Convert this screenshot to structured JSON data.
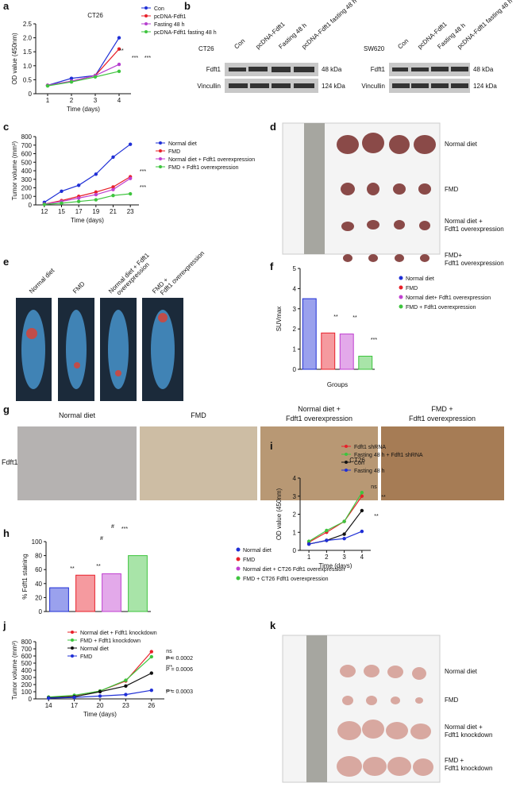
{
  "panel_labels": [
    "a",
    "b",
    "c",
    "d",
    "e",
    "f",
    "g",
    "h",
    "i",
    "j",
    "k"
  ],
  "chart_data": [
    {
      "type": "line",
      "title": "CT26",
      "x_label": "Time (days)",
      "y_label": "OD value (450nm)",
      "categories": [
        "1",
        "2",
        "3",
        "4"
      ],
      "series": [
        {
          "name": "Con",
          "color": "#1f2fd6",
          "values": [
            0.3,
            0.55,
            0.65,
            2.0
          ]
        },
        {
          "name": "pcDNA-Fdft1",
          "color": "#e8202a",
          "values": [
            0.3,
            0.45,
            0.65,
            1.6
          ]
        },
        {
          "name": "Fasting 48 h",
          "color": "#b63fcf",
          "values": [
            0.3,
            0.45,
            0.65,
            1.05
          ]
        },
        {
          "name": "pcDNA-Fdft1 fasting 48 h",
          "color": "#3ec43e",
          "values": [
            0.28,
            0.42,
            0.6,
            0.8
          ]
        }
      ],
      "ylim": [
        0,
        2.5
      ],
      "yticks": [
        0,
        0.5,
        {
          "value": 1,
          "label": "1.0"
        },
        1.5,
        {
          "value": 2,
          "label": "2.0"
        },
        2.5
      ],
      "annotations": [
        "**",
        "***",
        "***"
      ]
    },
    {
      "type": "line",
      "x_label": "Time (days)",
      "y_label": "Tumor volume (mm³)",
      "categories": [
        "12",
        "15",
        "17",
        "19",
        "21",
        "23"
      ],
      "series": [
        {
          "name": "Normal diet",
          "color": "#1f2fd6",
          "values": [
            30,
            160,
            230,
            360,
            560,
            710
          ]
        },
        {
          "name": "FMD",
          "color": "#e8202a",
          "values": [
            10,
            50,
            100,
            150,
            210,
            330
          ]
        },
        {
          "name": "Normal diet + Fdft1 overexpression",
          "color": "#c040d0",
          "values": [
            10,
            40,
            80,
            120,
            180,
            310
          ]
        },
        {
          "name": "FMD + Fdft1 overexpression",
          "color": "#3ec43e",
          "values": [
            5,
            20,
            40,
            60,
            110,
            130
          ]
        }
      ],
      "ylim": [
        0,
        800
      ],
      "yticks": [
        0,
        100,
        200,
        300,
        400,
        500,
        600,
        700,
        800
      ],
      "annotations": [
        "***",
        "***"
      ]
    },
    {
      "type": "bar",
      "x_label": "Groups",
      "y_label": "SUVmax",
      "categories": [
        "Normal diet",
        "FMD",
        "Normal diet+ Fdft1 overexpression",
        "FMD + Fdft1 overexpression"
      ],
      "values": [
        3.5,
        1.8,
        1.75,
        0.65
      ],
      "colors": [
        "#1f2fd6",
        "#e8202a",
        "#c040d0",
        "#3ec43e"
      ],
      "ylim": [
        0,
        5
      ],
      "yticks": [
        0,
        1,
        2,
        3,
        4,
        5
      ],
      "annotations": [
        "**",
        "**",
        "***"
      ]
    },
    {
      "type": "bar",
      "y_label": "% Fdft1 staining",
      "categories": [
        "Normal diet",
        "FMD",
        "Normal diet + CT26 Fdft1 overexpression",
        "FMD + CT26 Fdft1 overexpression"
      ],
      "values": [
        34,
        52,
        54,
        80
      ],
      "colors": [
        "#1f2fd6",
        "#e8202a",
        "#c040d0",
        "#3ec43e"
      ],
      "ylim": [
        0,
        100
      ],
      "yticks": [
        0,
        20,
        40,
        60,
        80,
        100
      ],
      "annotations": [
        "**",
        "**",
        "***",
        "#",
        "#"
      ]
    },
    {
      "type": "line",
      "title": "CT26",
      "x_label": "Time (days)",
      "y_label": "OD value (450nm)",
      "categories": [
        "1",
        "2",
        "3",
        "4"
      ],
      "series": [
        {
          "name": "Fdft1 shRNA",
          "color": "#e8202a",
          "values": [
            0.45,
            1.0,
            1.6,
            3.0
          ]
        },
        {
          "name": "Fasting 48 h + Fdft1 shRNA",
          "color": "#3ec43e",
          "values": [
            0.5,
            1.1,
            1.6,
            3.2
          ]
        },
        {
          "name": "Con",
          "color": "#111111",
          "values": [
            0.35,
            0.55,
            0.9,
            2.2
          ]
        },
        {
          "name": "Fasting 48 h",
          "color": "#1f2fd6",
          "values": [
            0.35,
            0.55,
            0.65,
            1.05
          ]
        }
      ],
      "ylim": [
        0,
        4
      ],
      "yticks": [
        0,
        1,
        2,
        3,
        4
      ],
      "annotations": [
        "ns",
        "**",
        "**"
      ]
    },
    {
      "type": "line",
      "x_label": "Time (days)",
      "y_label": "Tumor volume (mm³)",
      "categories": [
        "14",
        "17",
        "20",
        "23",
        "26"
      ],
      "series": [
        {
          "name": "Normal diet + Fdft1 knockdown",
          "color": "#e8202a",
          "values": [
            20,
            45,
            110,
            250,
            660
          ]
        },
        {
          "name": "FMD + Fdft1 knockdown",
          "color": "#3ec43e",
          "values": [
            25,
            50,
            110,
            260,
            590
          ]
        },
        {
          "name": "Normal diet",
          "color": "#111111",
          "values": [
            15,
            30,
            100,
            180,
            360
          ]
        },
        {
          "name": "FMD",
          "color": "#1f2fd6",
          "values": [
            10,
            20,
            40,
            60,
            120
          ]
        }
      ],
      "ylim": [
        0,
        800
      ],
      "yticks": [
        0,
        100,
        200,
        300,
        400,
        500,
        600,
        700,
        800
      ],
      "annotations": [
        "ns",
        "***",
        "P = 0.0002",
        "***",
        "P = 0.0006",
        "***",
        "P = 0.0003"
      ]
    }
  ],
  "blot": {
    "cell_lines": [
      "CT26",
      "SW620"
    ],
    "lanes": [
      "Con",
      "pcDNA-Fdft1",
      "Fasting 48 h",
      "pcDNA-Fdft1 fasting 48 h"
    ],
    "proteins": [
      "Fdft1",
      "Vincullin"
    ],
    "sizes": [
      "48 kDa",
      "124 kDa"
    ]
  },
  "photo_d": {
    "groups": [
      [
        "Normal diet"
      ],
      [
        "FMD"
      ],
      [
        "Normal diet +",
        "Fdft1 overexpression"
      ],
      [
        "FMD+",
        "Fdft1 overexpression"
      ]
    ]
  },
  "pet_e": {
    "groups": [
      [
        "Normal diet"
      ],
      [
        "FMD"
      ],
      [
        "Normal diet + Fdft1",
        "overexpression"
      ],
      [
        "FMD +",
        "Fdft1 overexpression"
      ]
    ]
  },
  "ihc_g": {
    "groups": [
      [
        "Normal diet"
      ],
      [
        "FMD"
      ],
      [
        "Normal diet +",
        "Fdft1 overexpression"
      ],
      [
        "FMD +",
        "Fdft1 overexpression"
      ]
    ],
    "stain": "Fdft1"
  },
  "photo_k": {
    "groups": [
      [
        "Normal diet"
      ],
      [
        "FMD"
      ],
      [
        "Normal diet +",
        "Fdft1 knockdown"
      ],
      [
        "FMD +",
        "Fdft1 knockdown"
      ]
    ]
  }
}
